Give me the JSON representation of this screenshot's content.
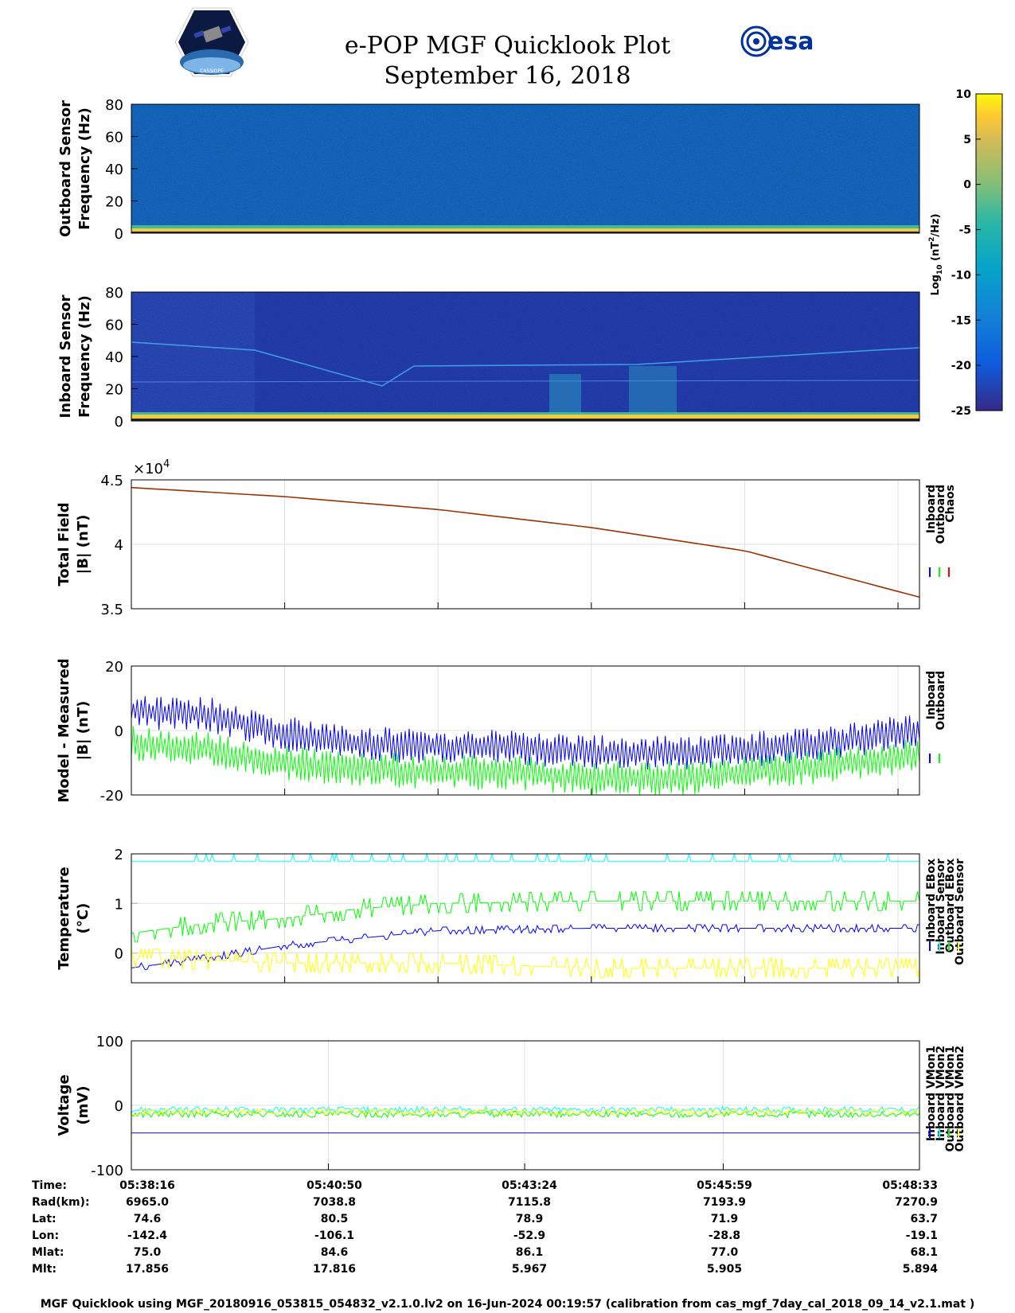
{
  "header": {
    "title": "e-POP MGF Quicklook Plot",
    "date": "September 16, 2018",
    "cassiope_logo_text": "CASSIOPE",
    "esa_logo_text": "esa"
  },
  "colors": {
    "inboard": "#0000ff",
    "outboard": "#00ff00",
    "chaos": "#ff0000",
    "inboard_ebox": "#0000ff",
    "inboard_sensor": "#00ffff",
    "outboard_ebox": "#00ff00",
    "outboard_sensor": "#ffff00",
    "total_field_line": "#993300"
  },
  "colorbar": {
    "label_base": "Log",
    "label_sub": "10",
    "label_unit_open": " (nT",
    "label_sup": "2",
    "label_unit_close": "/Hz)",
    "ticks": [
      "10",
      "5",
      "0",
      "-5",
      "-10",
      "-15",
      "-20",
      "-25"
    ],
    "range": [
      -25,
      10
    ],
    "colormap": "parula"
  },
  "chart_data": [
    {
      "type": "heatmap",
      "ylabel_line1": "Outboard Sensor",
      "ylabel_line2": "Frequency (Hz)",
      "yticks": [
        "80",
        "60",
        "40",
        "20",
        "0"
      ],
      "ylim": [
        0,
        80
      ],
      "description_value_range": [
        -20,
        10
      ]
    },
    {
      "type": "heatmap",
      "ylabel_line1": "Inboard Sensor",
      "ylabel_line2": "Frequency (Hz)",
      "yticks": [
        "80",
        "60",
        "40",
        "20",
        "0"
      ],
      "ylim": [
        0,
        80
      ],
      "description_value_range": [
        -25,
        10
      ]
    },
    {
      "type": "line",
      "ylabel_line1": "Total Field",
      "ylabel_line2": "|B| (nT)",
      "multiplier": "×10",
      "multiplier_exp": "4",
      "yticks": [
        "4.5",
        "4",
        "3.5"
      ],
      "ylim": [
        3.5,
        4.5
      ],
      "x_minutes": [
        0,
        2,
        4,
        6,
        8,
        10.28
      ],
      "y": [
        4.44,
        4.37,
        4.27,
        4.13,
        3.95,
        3.59
      ],
      "legend": [
        "Inboard",
        "Outboard",
        "Chaos"
      ]
    },
    {
      "type": "line",
      "ylabel_line1": "Model - Measured",
      "ylabel_line2": "|B| (nT)",
      "yticks": [
        "20",
        "0",
        "-20"
      ],
      "ylim": [
        -20,
        20
      ],
      "series": [
        {
          "name": "Inboard",
          "x_minutes": [
            0,
            1,
            2,
            3,
            4,
            5,
            6,
            7,
            8,
            9,
            10.28
          ],
          "y": [
            6,
            5,
            -1,
            -4,
            -5,
            -5,
            -7,
            -7,
            -6,
            -4,
            0
          ]
        },
        {
          "name": "Outboard",
          "x_minutes": [
            0,
            1,
            2,
            3,
            4,
            5,
            6,
            7,
            8,
            9,
            10.28
          ],
          "y": [
            -4,
            -6,
            -10,
            -12,
            -13,
            -13,
            -15,
            -15,
            -13,
            -11,
            -8
          ]
        }
      ],
      "legend": [
        "Inboard",
        "Outboard"
      ]
    },
    {
      "type": "line",
      "ylabel_line1": "Temperature",
      "ylabel_line2": "(°C)",
      "yticks": [
        "2",
        "1",
        "0"
      ],
      "ylim": [
        -0.6,
        2
      ],
      "series": [
        {
          "name": "Inboard EBox",
          "x_minutes": [
            0,
            1,
            2,
            3,
            4,
            6,
            8,
            10.28
          ],
          "y": [
            -0.3,
            -0.1,
            0.15,
            0.3,
            0.45,
            0.5,
            0.5,
            0.5
          ]
        },
        {
          "name": "Inboard Sensor",
          "x_minutes": [
            0,
            2,
            4,
            6,
            8,
            10.28
          ],
          "y": [
            1.85,
            1.85,
            1.85,
            1.85,
            1.85,
            1.85
          ]
        },
        {
          "name": "Outboard EBox",
          "x_minutes": [
            0,
            1,
            2,
            3,
            4,
            6,
            8,
            10.28
          ],
          "y": [
            0.4,
            0.6,
            0.7,
            0.9,
            1.0,
            1.05,
            1.05,
            1.05
          ]
        },
        {
          "name": "Outboard Sensor",
          "x_minutes": [
            0,
            2,
            4,
            6,
            8,
            10.28
          ],
          "y": [
            -0.1,
            -0.2,
            -0.2,
            -0.3,
            -0.3,
            -0.3
          ]
        }
      ],
      "legend": [
        "Inboard EBox",
        "Inboard Sensor",
        "Outboard EBox",
        "Outboard Sensor"
      ]
    },
    {
      "type": "line",
      "ylabel_line1": "Voltage",
      "ylabel_line2": "(mV)",
      "yticks": [
        "100",
        "0",
        "-100"
      ],
      "ylim": [
        -100,
        100
      ],
      "series": [
        {
          "name": "Inboard VMon1",
          "x_minutes": [
            0,
            10.28
          ],
          "y": [
            -43,
            -43
          ]
        },
        {
          "name": "Inboard VMon2",
          "x_minutes": [
            0,
            10.28
          ],
          "y": [
            -7,
            -7
          ]
        },
        {
          "name": "Outboard VMon1",
          "x_minutes": [
            0,
            10.28
          ],
          "y": [
            -14,
            -14
          ]
        },
        {
          "name": "Outboard VMon2",
          "x_minutes": [
            0,
            10.28
          ],
          "y": [
            -10,
            -10
          ]
        }
      ],
      "legend": [
        "Inboard VMon1",
        "Inboard VMon2",
        "Outboard VMon1",
        "Outboard VMon2"
      ]
    }
  ],
  "info_table": {
    "rows": [
      {
        "label": "Time:",
        "values": [
          "05:38:16",
          "05:40:50",
          "05:43:24",
          "05:45:59",
          "05:48:33"
        ]
      },
      {
        "label": "Rad(km):",
        "values": [
          "6965.0",
          "7038.8",
          "7115.8",
          "7193.9",
          "7270.9"
        ]
      },
      {
        "label": "Lat:",
        "values": [
          "74.6",
          "80.5",
          "78.9",
          "71.9",
          "63.7"
        ]
      },
      {
        "label": "Lon:",
        "values": [
          "-142.4",
          "-106.1",
          "-52.9",
          "-28.8",
          "-19.1"
        ]
      },
      {
        "label": "Mlat:",
        "values": [
          "75.0",
          "84.6",
          "86.1",
          "77.0",
          "68.1"
        ]
      },
      {
        "label": "Mlt:",
        "values": [
          "17.856",
          "17.816",
          "5.967",
          "5.905",
          "5.894"
        ]
      }
    ]
  },
  "footer": "MGF Quicklook using MGF_20180916_053815_054832_v2.1.0.lv2 on 16-Jun-2024 00:19:57 (calibration from cas_mgf_7day_cal_2018_09_14_v2.1.mat )"
}
